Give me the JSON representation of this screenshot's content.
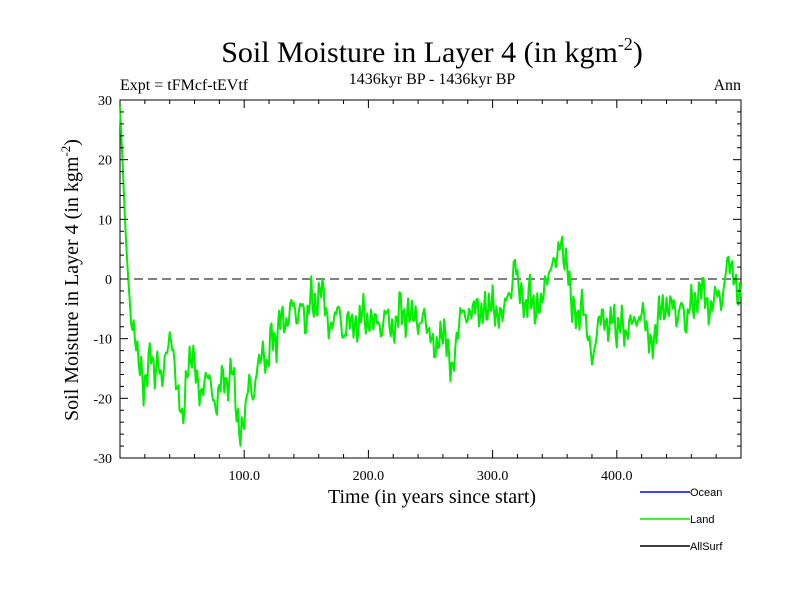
{
  "header": {
    "title_main": "Soil Moisture in Layer 4 (in kgm",
    "title_sup": "-2",
    "title_end": ")",
    "expt": "Expt = tFMcf-tEVtf",
    "period": "1436kyr BP - 1436kyr BP",
    "season": "Ann"
  },
  "chart_data": {
    "type": "line",
    "title": "Soil Moisture in Layer 4 (in kgm-2)",
    "xlabel": "Time (in years since start)",
    "ylabel_main": "Soil Moisture in Layer 4 (in kgm",
    "ylabel_sup": "-2",
    "ylabel_end": ")",
    "xlim": [
      0,
      500
    ],
    "ylim": [
      -30,
      30
    ],
    "x_ticks": [
      100,
      200,
      300,
      400
    ],
    "x_tick_labels": [
      "100.0",
      "200.0",
      "300.0",
      "400.0"
    ],
    "y_ticks": [
      -30,
      -20,
      -10,
      0,
      10,
      20,
      30
    ],
    "y_tick_labels": [
      "-30",
      "-20",
      "-10",
      "0",
      "10",
      "20",
      "30"
    ],
    "reference_line": {
      "y": 0,
      "style": "dashed"
    },
    "legend": [
      {
        "name": "Ocean",
        "color": "#0000ff"
      },
      {
        "name": "Land",
        "color": "#00ee00"
      },
      {
        "name": "AllSurf",
        "color": "#000000"
      }
    ],
    "series": [
      {
        "name": "Land",
        "color": "#00ee00",
        "anchors": [
          [
            0,
            29
          ],
          [
            2,
            20
          ],
          [
            4,
            10
          ],
          [
            6,
            2
          ],
          [
            8,
            -4
          ],
          [
            10,
            -8
          ],
          [
            13,
            -11
          ],
          [
            16,
            -14
          ],
          [
            19,
            -19
          ],
          [
            22,
            -15
          ],
          [
            25,
            -12
          ],
          [
            28,
            -16
          ],
          [
            31,
            -14
          ],
          [
            34,
            -17
          ],
          [
            37,
            -13
          ],
          [
            40,
            -9
          ],
          [
            43,
            -13
          ],
          [
            46,
            -18
          ],
          [
            50,
            -24
          ],
          [
            54,
            -16
          ],
          [
            58,
            -12
          ],
          [
            62,
            -17
          ],
          [
            66,
            -20
          ],
          [
            70,
            -15
          ],
          [
            74,
            -19
          ],
          [
            78,
            -22
          ],
          [
            82,
            -15
          ],
          [
            86,
            -19
          ],
          [
            90,
            -14
          ],
          [
            94,
            -22
          ],
          [
            97,
            -27
          ],
          [
            100,
            -23
          ],
          [
            104,
            -17
          ],
          [
            108,
            -20
          ],
          [
            111,
            -14
          ],
          [
            114,
            -12
          ],
          [
            118,
            -15
          ],
          [
            122,
            -9
          ],
          [
            126,
            -11
          ],
          [
            130,
            -5
          ],
          [
            134,
            -9
          ],
          [
            138,
            -3
          ],
          [
            142,
            -7
          ],
          [
            146,
            -4
          ],
          [
            150,
            -8
          ],
          [
            154,
            -2
          ],
          [
            158,
            -6
          ],
          [
            162,
            0
          ],
          [
            166,
            -6
          ],
          [
            170,
            -9
          ],
          [
            175,
            -4
          ],
          [
            180,
            -10
          ],
          [
            185,
            -6
          ],
          [
            190,
            -9
          ],
          [
            195,
            -5
          ],
          [
            200,
            -8
          ],
          [
            205,
            -6
          ],
          [
            210,
            -9
          ],
          [
            215,
            -5
          ],
          [
            220,
            -10
          ],
          [
            225,
            -4
          ],
          [
            230,
            -7
          ],
          [
            235,
            -5
          ],
          [
            240,
            -8
          ],
          [
            245,
            -6
          ],
          [
            250,
            -10
          ],
          [
            255,
            -12
          ],
          [
            260,
            -8
          ],
          [
            265,
            -13
          ],
          [
            268,
            -16
          ],
          [
            272,
            -8
          ],
          [
            276,
            -5
          ],
          [
            280,
            -7
          ],
          [
            285,
            -4
          ],
          [
            290,
            -6
          ],
          [
            295,
            -5
          ],
          [
            300,
            -4
          ],
          [
            305,
            -7
          ],
          [
            310,
            -4
          ],
          [
            315,
            -2
          ],
          [
            318,
            3
          ],
          [
            322,
            -2
          ],
          [
            326,
            -5
          ],
          [
            330,
            -2
          ],
          [
            335,
            -6
          ],
          [
            340,
            -3
          ],
          [
            345,
            1
          ],
          [
            350,
            3
          ],
          [
            355,
            6
          ],
          [
            360,
            2
          ],
          [
            364,
            -4
          ],
          [
            368,
            -7
          ],
          [
            372,
            -4
          ],
          [
            376,
            -8
          ],
          [
            380,
            -14
          ],
          [
            384,
            -9
          ],
          [
            388,
            -5
          ],
          [
            392,
            -9
          ],
          [
            396,
            -6
          ],
          [
            400,
            -9
          ],
          [
            404,
            -7
          ],
          [
            408,
            -10
          ],
          [
            412,
            -6
          ],
          [
            416,
            -8
          ],
          [
            420,
            -5
          ],
          [
            424,
            -8
          ],
          [
            428,
            -12
          ],
          [
            432,
            -8
          ],
          [
            436,
            -4
          ],
          [
            440,
            -6
          ],
          [
            444,
            -3
          ],
          [
            448,
            -7
          ],
          [
            452,
            -4
          ],
          [
            456,
            -8
          ],
          [
            460,
            -3
          ],
          [
            464,
            -5
          ],
          [
            468,
            0
          ],
          [
            472,
            -4
          ],
          [
            476,
            -6
          ],
          [
            480,
            -1
          ],
          [
            484,
            -5
          ],
          [
            488,
            2
          ],
          [
            492,
            3
          ],
          [
            496,
            -2
          ],
          [
            500,
            -3
          ]
        ]
      }
    ]
  }
}
